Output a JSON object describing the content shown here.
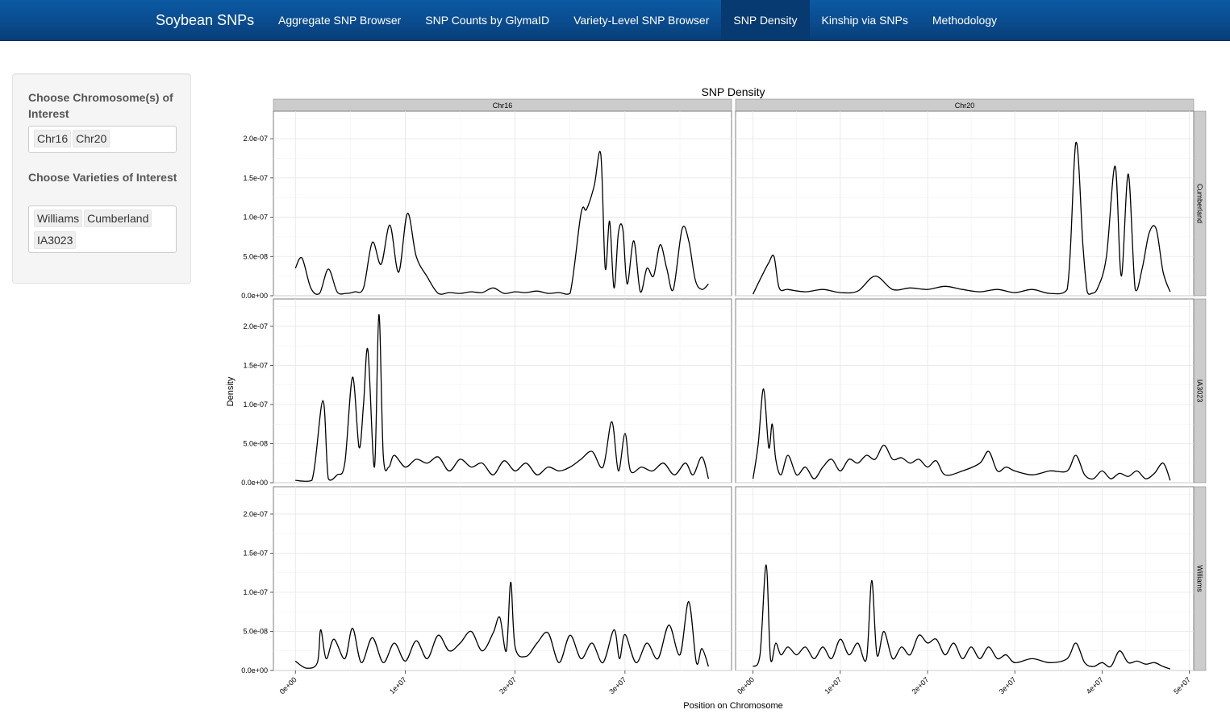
{
  "navbar": {
    "brand": "Soybean SNPs",
    "items": [
      {
        "label": "Aggregate SNP Browser",
        "active": false
      },
      {
        "label": "SNP Counts by GlymaID",
        "active": false
      },
      {
        "label": "Variety-Level SNP Browser",
        "active": false
      },
      {
        "label": "SNP Density",
        "active": true
      },
      {
        "label": "Kinship via SNPs",
        "active": false
      },
      {
        "label": "Methodology",
        "active": false
      }
    ]
  },
  "sidebar": {
    "chromosome_label": "Choose Chromosome(s) of Interest",
    "chromosomes": [
      "Chr16",
      "Chr20"
    ],
    "variety_label": "Choose Varieties of Interest",
    "varieties": [
      "Williams",
      "Cumberland",
      "IA3023"
    ]
  },
  "chart_data": {
    "type": "line",
    "title": "SNP Density",
    "xlabel": "Position on Chromosome",
    "ylabel": "Density",
    "ylim": [
      0,
      2.35e-07
    ],
    "yticks": [
      0,
      5e-08,
      1e-07,
      1.5e-07,
      2e-07
    ],
    "ytick_labels": [
      "0.0e+00",
      "5.0e-08",
      "1.0e-07",
      "1.5e-07",
      "2.0e-07"
    ],
    "columns": [
      {
        "name": "Chr16",
        "xlim": [
          -2000000.0,
          39700000.0
        ],
        "xticks": [
          0,
          10000000.0,
          20000000.0,
          30000000.0
        ],
        "xtick_labels": [
          "0e+00",
          "1e+07",
          "2e+07",
          "3e+07"
        ]
      },
      {
        "name": "Chr20",
        "xlim": [
          -2000000.0,
          50500000.0
        ],
        "xticks": [
          0,
          10000000.0,
          20000000.0,
          30000000.0,
          40000000.0,
          50000000.0
        ],
        "xtick_labels": [
          "0e+00",
          "1e+07",
          "2e+07",
          "3e+07",
          "4e+07",
          "5e+07"
        ]
      }
    ],
    "rows": [
      "Cumberland",
      "IA3023",
      "Williams"
    ],
    "line_color": "#000000",
    "strip_color": "#cccccc",
    "grid": true,
    "series": [
      {
        "row": "Cumberland",
        "col": "Chr16",
        "x": [
          0.0,
          600000.0,
          1400000.0,
          2200000.0,
          3000000.0,
          3800000.0,
          4600000.0,
          5400000.0,
          6200000.0,
          7000000.0,
          7800000.0,
          8600000.0,
          9400000.0,
          10200000.0,
          11000000.0,
          12000000.0,
          13000000.0,
          14000000.0,
          15000000.0,
          16000000.0,
          17000000.0,
          18000000.0,
          19000000.0,
          20000000.0,
          21000000.0,
          22000000.0,
          23000000.0,
          24000000.0,
          25000000.0,
          26000000.0,
          26500000.0,
          27200000.0,
          27800000.0,
          28200000.0,
          28600000.0,
          29000000.0,
          29400000.0,
          29800000.0,
          30200000.0,
          30800000.0,
          31400000.0,
          32000000.0,
          32600000.0,
          33200000.0,
          33800000.0,
          34400000.0,
          35200000.0,
          35800000.0,
          36400000.0,
          37000000.0,
          37600000.0
        ],
        "y": [
          3.5e-08,
          4.8e-08,
          1e-08,
          3e-09,
          3.4e-08,
          5e-09,
          3e-09,
          5e-09,
          1e-08,
          6.8e-08,
          4e-08,
          9e-08,
          3e-08,
          1.05e-07,
          5e-08,
          2.4e-08,
          3e-09,
          4e-09,
          3e-09,
          5e-09,
          4e-09,
          1e-08,
          3e-09,
          5e-09,
          4e-09,
          6e-09,
          3e-09,
          4e-09,
          3e-09,
          1.05e-07,
          1.1e-07,
          1.4e-07,
          1.8e-07,
          3.5e-08,
          9.5e-08,
          1e-08,
          8e-08,
          8.5e-08,
          1.5e-08,
          7e-08,
          5e-09,
          3.5e-08,
          2.5e-08,
          6.5e-08,
          3.5e-08,
          8e-09,
          8.5e-08,
          7e-08,
          2e-08,
          8e-09,
          1.5e-08
        ]
      },
      {
        "row": "Cumberland",
        "col": "Chr20",
        "x": [
          0.0,
          1000000.0,
          1800000.0,
          2400000.0,
          3000000.0,
          4000000.0,
          6000000.0,
          8000000.0,
          10000000.0,
          12000000.0,
          14000000.0,
          16000000.0,
          18000000.0,
          20000000.0,
          22000000.0,
          24000000.0,
          26000000.0,
          28000000.0,
          30000000.0,
          32000000.0,
          34000000.0,
          36000000.0,
          37000000.0,
          37800000.0,
          38300000.0,
          38800000.0,
          39500000.0,
          40500000.0,
          41500000.0,
          42200000.0,
          43000000.0,
          43800000.0,
          44600000.0,
          45400000.0,
          46200000.0,
          47000000.0,
          47800000.0
        ],
        "y": [
          2e-09,
          2.5e-08,
          4.2e-08,
          5e-08,
          1e-08,
          8e-09,
          5e-09,
          8e-09,
          4e-09,
          6e-09,
          2.5e-08,
          8e-09,
          1e-08,
          8e-09,
          1.2e-08,
          8e-09,
          5e-09,
          8e-09,
          4e-09,
          8e-09,
          3e-09,
          8e-09,
          1.95e-07,
          6.5e-08,
          5e-09,
          3e-09,
          1e-08,
          5e-08,
          1.65e-07,
          2.5e-08,
          1.55e-07,
          8e-09,
          3.5e-08,
          8e-08,
          8.5e-08,
          3e-08,
          5e-09
        ]
      },
      {
        "row": "IA3023",
        "col": "Chr16",
        "x": [
          0.0,
          1500000.0,
          2500000.0,
          3000000.0,
          3800000.0,
          4500000.0,
          5200000.0,
          5800000.0,
          6200000.0,
          6600000.0,
          7200000.0,
          7600000.0,
          8000000.0,
          8500000.0,
          9000000.0,
          10000000.0,
          11000000.0,
          12000000.0,
          13000000.0,
          14000000.0,
          15000000.0,
          16000000.0,
          17000000.0,
          18000000.0,
          19000000.0,
          20000000.0,
          21000000.0,
          22000000.0,
          23000000.0,
          24000000.0,
          25000000.0,
          26000000.0,
          27000000.0,
          28000000.0,
          28800000.0,
          29400000.0,
          30000000.0,
          30500000.0,
          31500000.0,
          32500000.0,
          33500000.0,
          34500000.0,
          35500000.0,
          36200000.0,
          37000000.0,
          37600000.0
        ],
        "y": [
          3e-09,
          3e-09,
          1.05e-07,
          5e-09,
          1e-08,
          2.5e-08,
          1.35e-07,
          4.5e-08,
          1e-07,
          1.7e-07,
          2e-08,
          2.15e-07,
          3.5e-08,
          2e-08,
          3.5e-08,
          2e-08,
          3e-08,
          2.5e-08,
          3.3e-08,
          1.5e-08,
          3e-08,
          2e-08,
          2.5e-08,
          1e-08,
          2.8e-08,
          1.5e-08,
          2.5e-08,
          1e-08,
          2e-08,
          1.5e-08,
          2e-08,
          3e-08,
          4e-08,
          2e-08,
          7.8e-08,
          1.5e-08,
          6.3e-08,
          1.5e-08,
          2e-08,
          1.5e-08,
          2.5e-08,
          1e-08,
          2.5e-08,
          1e-08,
          3.3e-08,
          5e-09
        ]
      },
      {
        "row": "IA3023",
        "col": "Chr20",
        "x": [
          0.0,
          600000.0,
          1200000.0,
          1800000.0,
          2200000.0,
          2600000.0,
          3200000.0,
          4000000.0,
          5000000.0,
          6000000.0,
          7000000.0,
          8000000.0,
          9000000.0,
          10000000.0,
          11000000.0,
          12000000.0,
          13000000.0,
          14000000.0,
          15000000.0,
          16000000.0,
          17000000.0,
          18000000.0,
          19000000.0,
          20000000.0,
          21000000.0,
          22000000.0,
          24000000.0,
          26000000.0,
          27000000.0,
          28000000.0,
          29000000.0,
          30000000.0,
          32000000.0,
          34000000.0,
          36000000.0,
          37000000.0,
          38000000.0,
          39000000.0,
          40000000.0,
          41000000.0,
          42000000.0,
          43000000.0,
          44000000.0,
          45000000.0,
          46000000.0,
          47000000.0,
          47800000.0
        ],
        "y": [
          5e-09,
          5e-08,
          1.2e-07,
          4.5e-08,
          7.5e-08,
          3e-08,
          1e-08,
          3.5e-08,
          1e-08,
          2e-08,
          5e-09,
          2e-08,
          3e-08,
          1.5e-08,
          3e-08,
          2.5e-08,
          3.5e-08,
          3e-08,
          4.8e-08,
          3e-08,
          3.2e-08,
          2.5e-08,
          3e-08,
          2e-08,
          2.8e-08,
          1e-08,
          1.5e-08,
          2.5e-08,
          4e-08,
          1.5e-08,
          2e-08,
          1.5e-08,
          1e-08,
          1.5e-08,
          1.5e-08,
          3.5e-08,
          1e-08,
          5e-09,
          1.5e-08,
          5e-09,
          1.2e-08,
          8e-09,
          1.5e-08,
          5e-09,
          1.2e-08,
          2.5e-08,
          3e-09
        ]
      },
      {
        "row": "Williams",
        "col": "Chr16",
        "x": [
          0.0,
          1000000.0,
          2000000.0,
          2300000.0,
          2800000.0,
          3500000.0,
          4500000.0,
          5200000.0,
          6000000.0,
          7000000.0,
          8000000.0,
          9000000.0,
          10000000.0,
          11000000.0,
          12000000.0,
          13000000.0,
          14000000.0,
          15000000.0,
          16000000.0,
          17000000.0,
          18000000.0,
          18600000.0,
          19200000.0,
          19600000.0,
          20000000.0,
          21000000.0,
          22000000.0,
          23000000.0,
          24000000.0,
          25000000.0,
          26000000.0,
          27000000.0,
          28000000.0,
          29000000.0,
          29500000.0,
          30000000.0,
          31000000.0,
          32000000.0,
          33000000.0,
          34000000.0,
          35000000.0,
          35800000.0,
          36500000.0,
          37000000.0,
          37600000.0
        ],
        "y": [
          1.2e-08,
          3e-09,
          1e-08,
          5.2e-08,
          1.5e-08,
          4e-08,
          1.5e-08,
          5.4e-08,
          1e-08,
          4.2e-08,
          1e-08,
          3.5e-08,
          1.2e-08,
          3.8e-08,
          1.5e-08,
          4.5e-08,
          2.5e-08,
          3.5e-08,
          5e-08,
          2.5e-08,
          4.8e-08,
          6.8e-08,
          2.5e-08,
          1.13e-07,
          3e-08,
          1.8e-08,
          3.5e-08,
          4.8e-08,
          1e-08,
          4.5e-08,
          1.5e-08,
          3.5e-08,
          1e-08,
          5.2e-08,
          1.5e-08,
          4.6e-08,
          1e-08,
          3.5e-08,
          1.5e-08,
          5.8e-08,
          2e-08,
          8.8e-08,
          1e-08,
          2.8e-08,
          5e-09
        ]
      },
      {
        "row": "Williams",
        "col": "Chr20",
        "x": [
          0.0,
          800000.0,
          1500000.0,
          2000000.0,
          2600000.0,
          3200000.0,
          4000000.0,
          5000000.0,
          6000000.0,
          7000000.0,
          8000000.0,
          9000000.0,
          10000000.0,
          11000000.0,
          12000000.0,
          13000000.0,
          13600000.0,
          14200000.0,
          15000000.0,
          16000000.0,
          17000000.0,
          18000000.0,
          19000000.0,
          20000000.0,
          21000000.0,
          22000000.0,
          23000000.0,
          24000000.0,
          25000000.0,
          26000000.0,
          27000000.0,
          28000000.0,
          29000000.0,
          30000000.0,
          32000000.0,
          34000000.0,
          36000000.0,
          37000000.0,
          38000000.0,
          39000000.0,
          40000000.0,
          41000000.0,
          42000000.0,
          43000000.0,
          44000000.0,
          45000000.0,
          46000000.0,
          47000000.0,
          47800000.0
        ],
        "y": [
          5e-09,
          2e-08,
          1.35e-07,
          1.5e-08,
          3.5e-08,
          2e-08,
          3e-08,
          2e-08,
          3e-08,
          1.5e-08,
          3e-08,
          1.5e-08,
          4e-08,
          2e-08,
          3.5e-08,
          1.5e-08,
          1.15e-07,
          2e-08,
          5e-08,
          1.5e-08,
          3e-08,
          2e-08,
          4.5e-08,
          3.5e-08,
          4e-08,
          2e-08,
          3.5e-08,
          1.5e-08,
          3e-08,
          1.5e-08,
          3e-08,
          1.5e-08,
          2e-08,
          1e-08,
          1.5e-08,
          1e-08,
          1.5e-08,
          3.5e-08,
          1e-08,
          5e-09,
          1e-08,
          5e-09,
          2.5e-08,
          1e-08,
          1.2e-08,
          8e-09,
          1e-08,
          5e-09,
          2e-09
        ]
      }
    ]
  }
}
